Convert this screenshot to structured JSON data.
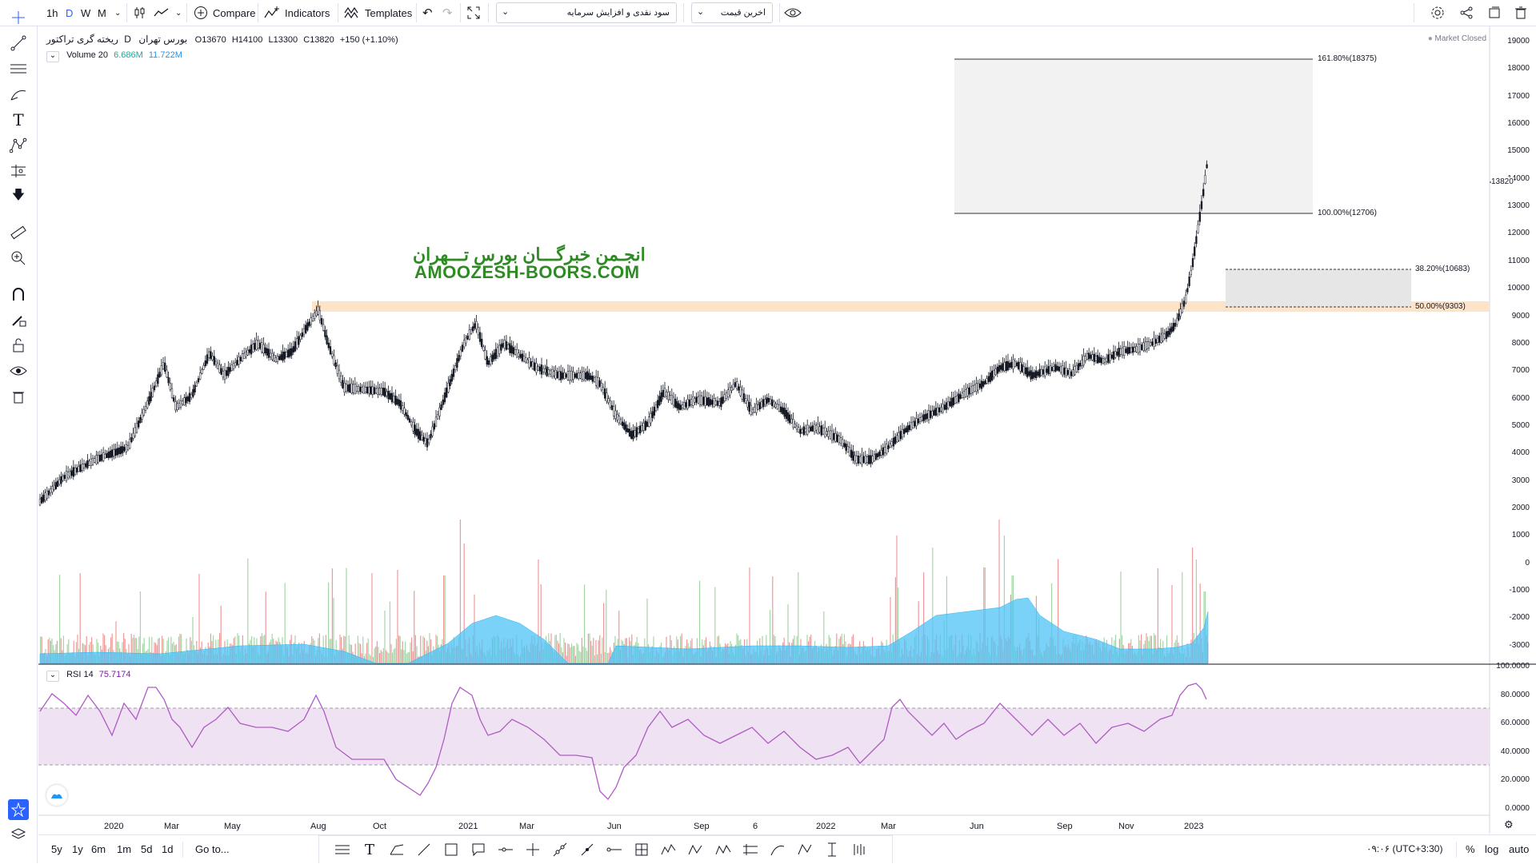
{
  "toolbar": {
    "intervals": [
      "1h",
      "D",
      "W",
      "M"
    ],
    "active_interval": "D",
    "compare_label": "Compare",
    "indicators_label": "Indicators",
    "templates_label": "Templates",
    "dropdown1": "سود نقدی و افزایش سرمایه",
    "dropdown2": "اخرین قیمت"
  },
  "symbol": {
    "name": "ریخته گری تراکتور",
    "interval": "D",
    "exchange": "بورس تهران",
    "open_label": "O",
    "open": "13670",
    "high_label": "H",
    "high": "14100",
    "low_label": "L",
    "low": "13300",
    "close_label": "C",
    "close": "13820",
    "change": "+150 (+1.10%)",
    "market_status": "Market Closed"
  },
  "volume": {
    "label": "Volume 20",
    "value1": "6.686M",
    "value2": "11.722M"
  },
  "rsi": {
    "label": "RSI 14",
    "value": "75.7174"
  },
  "watermark": {
    "line1": "انجـمن خبرگـــان بورس تـــهران",
    "line2": "AMOOZESH-BOORS.COM"
  },
  "fib_labels": {
    "l1618": "161.80%(18375)",
    "l100": "100.00%(12706)",
    "l382": "38.20%(10683)",
    "l50": "50.00%(9303)"
  },
  "price_axis": [
    "19000",
    "18000",
    "17000",
    "16000",
    "15000",
    "14000",
    "13000",
    "12000",
    "11000",
    "10000",
    "9000",
    "8000",
    "7000",
    "6000",
    "5000",
    "4000",
    "3000",
    "2000",
    "1000",
    "0",
    "-1000",
    "-2000",
    "-3000"
  ],
  "last_price_tag": "13820",
  "rsi_axis": [
    "100.0000",
    "80.0000",
    "60.0000",
    "40.0000",
    "20.0000",
    "0.0000"
  ],
  "time_axis": [
    "2020",
    "Mar",
    "May",
    "Aug",
    "Oct",
    "2021",
    "Mar",
    "Jun",
    "Sep",
    "6",
    "2022",
    "Mar",
    "Jun",
    "Sep",
    "Nov",
    "2023"
  ],
  "bottom": {
    "ranges": [
      "5y",
      "1y",
      "6m",
      "1m",
      "5d",
      "1d"
    ],
    "goto": "Go to...",
    "time": "۰۹:۰۶ (UTC+3:30)",
    "percent": "%",
    "log": "log",
    "auto": "auto"
  },
  "colors": {
    "accent": "#2962ff",
    "up_volume": "#a5d6a7",
    "down_volume": "#ef9a9a",
    "volume_ma": "#4fc3f7",
    "rsi_line": "#b05ac4",
    "rsi_band": "#efe3f3",
    "zone": "#fde3c8",
    "watermark": "#2e8b24"
  }
}
